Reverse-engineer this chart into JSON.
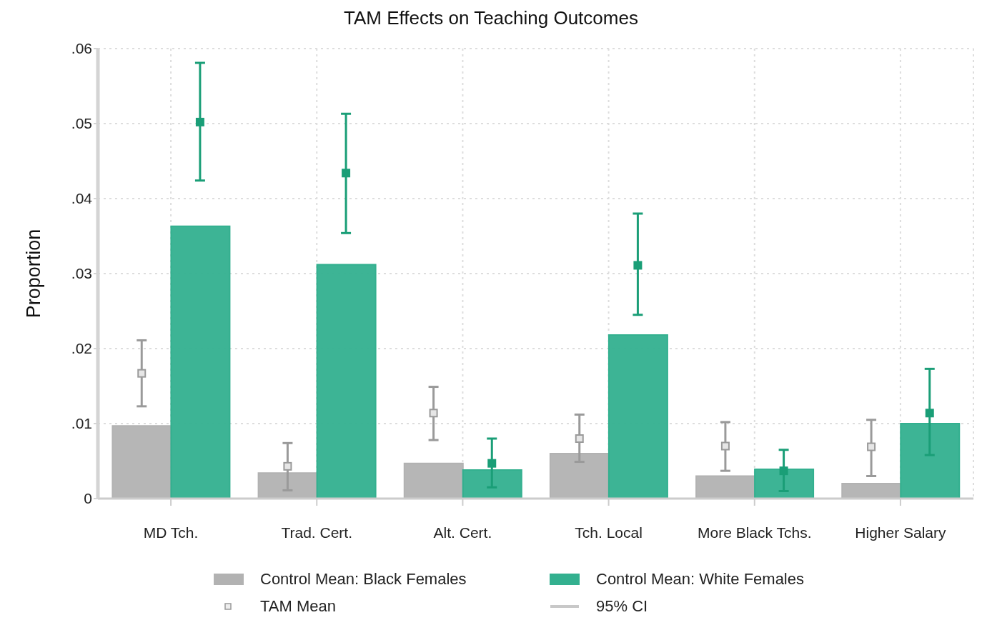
{
  "chart_data": {
    "type": "bar",
    "title": "TAM Effects on Teaching Outcomes",
    "ylabel": "Proportion",
    "categories": [
      "MD Tch.",
      "Trad. Cert.",
      "Alt. Cert.",
      "Tch. Local",
      "More Black Tchs.",
      "Higher Salary"
    ],
    "series": [
      {
        "name": "Control Mean: Black Females",
        "color": "#b2b2b2",
        "values": [
          0.0097,
          0.0034,
          0.0047,
          0.006,
          0.003,
          0.002
        ]
      },
      {
        "name": "Control Mean: White Females",
        "color": "#33b08f",
        "values": [
          0.0363,
          0.0312,
          0.0038,
          0.0218,
          0.0039,
          0.01
        ]
      },
      {
        "name": "TAM Mean",
        "type": "scatter",
        "color": "#9a9a9a",
        "marker": "square",
        "x": [
          "MD Tch.",
          "Trad. Cert.",
          "Alt. Cert.",
          "Tch. Local",
          "More Black Tchs.",
          "Higher Salary"
        ],
        "values": [
          0.0167,
          0.0043,
          0.0114,
          0.008,
          0.007,
          0.0069
        ],
        "errors": [
          [
            0.0123,
            0.0211
          ],
          [
            0.0011,
            0.0074
          ],
          [
            0.0078,
            0.0149
          ],
          [
            0.0049,
            0.0112
          ],
          [
            0.0037,
            0.0102
          ],
          [
            0.003,
            0.0105
          ]
        ]
      },
      {
        "type": "scatter",
        "color": "#1a9e77",
        "marker": "square",
        "x": [
          "MD Tch.",
          "Trad. Cert.",
          "Alt. Cert.",
          "Tch. Local",
          "More Black Tchs.",
          "Higher Salary"
        ],
        "values": [
          0.0502,
          0.0434,
          0.0047,
          0.0311,
          0.0037,
          0.0114
        ],
        "errors": [
          [
            0.0424,
            0.0581
          ],
          [
            0.0354,
            0.0513
          ],
          [
            0.0015,
            0.008
          ],
          [
            0.0245,
            0.038
          ],
          [
            0.001,
            0.0065
          ],
          [
            0.0058,
            0.0173
          ]
        ]
      }
    ],
    "ylim": [
      0,
      0.06
    ],
    "yticks": [
      {
        "value": 0,
        "label": "0"
      },
      {
        "value": 0.01,
        "label": ".01"
      },
      {
        "value": 0.02,
        "label": ".02"
      },
      {
        "value": 0.03,
        "label": ".03"
      },
      {
        "value": 0.04,
        "label": ".04"
      },
      {
        "value": 0.05,
        "label": ".05"
      },
      {
        "value": 0.06,
        "label": ".06"
      }
    ],
    "grid": true,
    "legend": "bottom",
    "annotations": [
      "95% CI"
    ]
  }
}
